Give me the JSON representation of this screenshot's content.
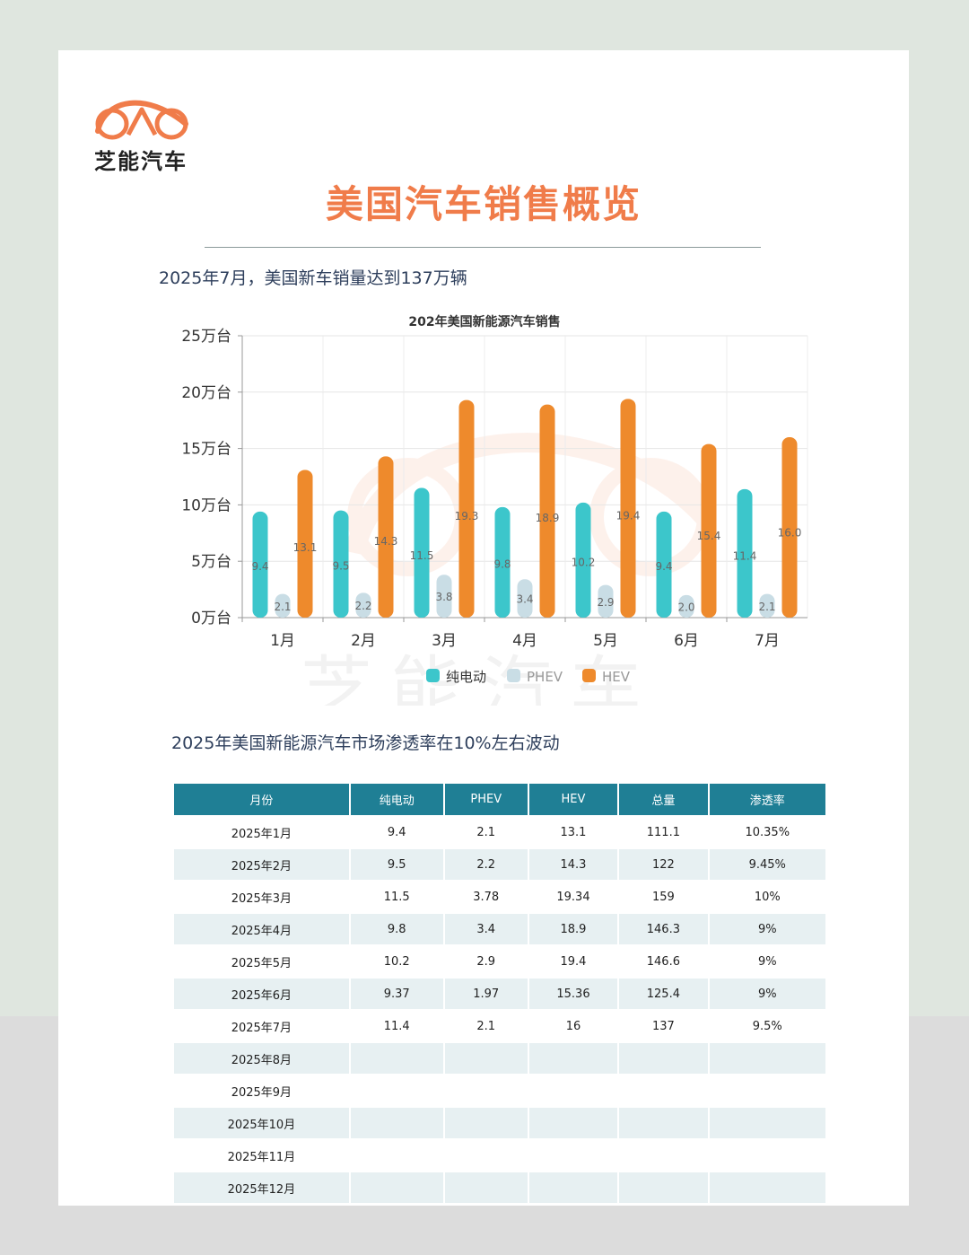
{
  "brand": {
    "name": "芝能汽车",
    "color": "#f07c4a"
  },
  "page_title": "美国汽车销售概览",
  "subtitle_1": "2025年7月，美国新车销量达到137万辆",
  "subtitle_2": "2025年美国新能源汽车市场渗透率在10%左右波动",
  "watermark_text": "芝能汽车",
  "chart_data": {
    "type": "bar",
    "title": "202年美国新能源汽车销售",
    "categories": [
      "1月",
      "2月",
      "3月",
      "4月",
      "5月",
      "6月",
      "7月"
    ],
    "series": [
      {
        "name": "纯电动",
        "color": "#3cc6cb",
        "values": [
          9.4,
          9.5,
          11.5,
          9.8,
          10.2,
          9.4,
          11.4
        ]
      },
      {
        "name": "PHEV",
        "color": "#c9dde5",
        "values": [
          2.1,
          2.2,
          3.8,
          3.4,
          2.9,
          2.0,
          2.1
        ]
      },
      {
        "name": "HEV",
        "color": "#ee8a2c",
        "values": [
          13.1,
          14.3,
          19.3,
          18.9,
          19.4,
          15.4,
          16.0
        ]
      }
    ],
    "ylim": [
      0,
      25
    ],
    "yticks": [
      0,
      5,
      10,
      15,
      20,
      25
    ],
    "ytick_labels": [
      "0万台",
      "5万台",
      "10万台",
      "15万台",
      "20万台",
      "25万台"
    ],
    "grid": true,
    "legend": "bottom"
  },
  "table": {
    "headers": [
      "月份",
      "纯电动",
      "PHEV",
      "HEV",
      "总量",
      "渗透率"
    ],
    "rows": [
      [
        "2025年1月",
        "9.4",
        "2.1",
        "13.1",
        "111.1",
        "10.35%"
      ],
      [
        "2025年2月",
        "9.5",
        "2.2",
        "14.3",
        "122",
        "9.45%"
      ],
      [
        "2025年3月",
        "11.5",
        "3.78",
        "19.34",
        "159",
        "10%"
      ],
      [
        "2025年4月",
        "9.8",
        "3.4",
        "18.9",
        "146.3",
        "9%"
      ],
      [
        "2025年5月",
        "10.2",
        "2.9",
        "19.4",
        "146.6",
        "9%"
      ],
      [
        "2025年6月",
        "9.37",
        "1.97",
        "15.36",
        "125.4",
        "9%"
      ],
      [
        "2025年7月",
        "11.4",
        "2.1",
        "16",
        "137",
        "9.5%"
      ],
      [
        "2025年8月",
        "",
        "",
        "",
        "",
        ""
      ],
      [
        "2025年9月",
        "",
        "",
        "",
        "",
        ""
      ],
      [
        "2025年10月",
        "",
        "",
        "",
        "",
        ""
      ],
      [
        "2025年11月",
        "",
        "",
        "",
        "",
        ""
      ],
      [
        "2025年12月",
        "",
        "",
        "",
        "",
        ""
      ]
    ]
  }
}
